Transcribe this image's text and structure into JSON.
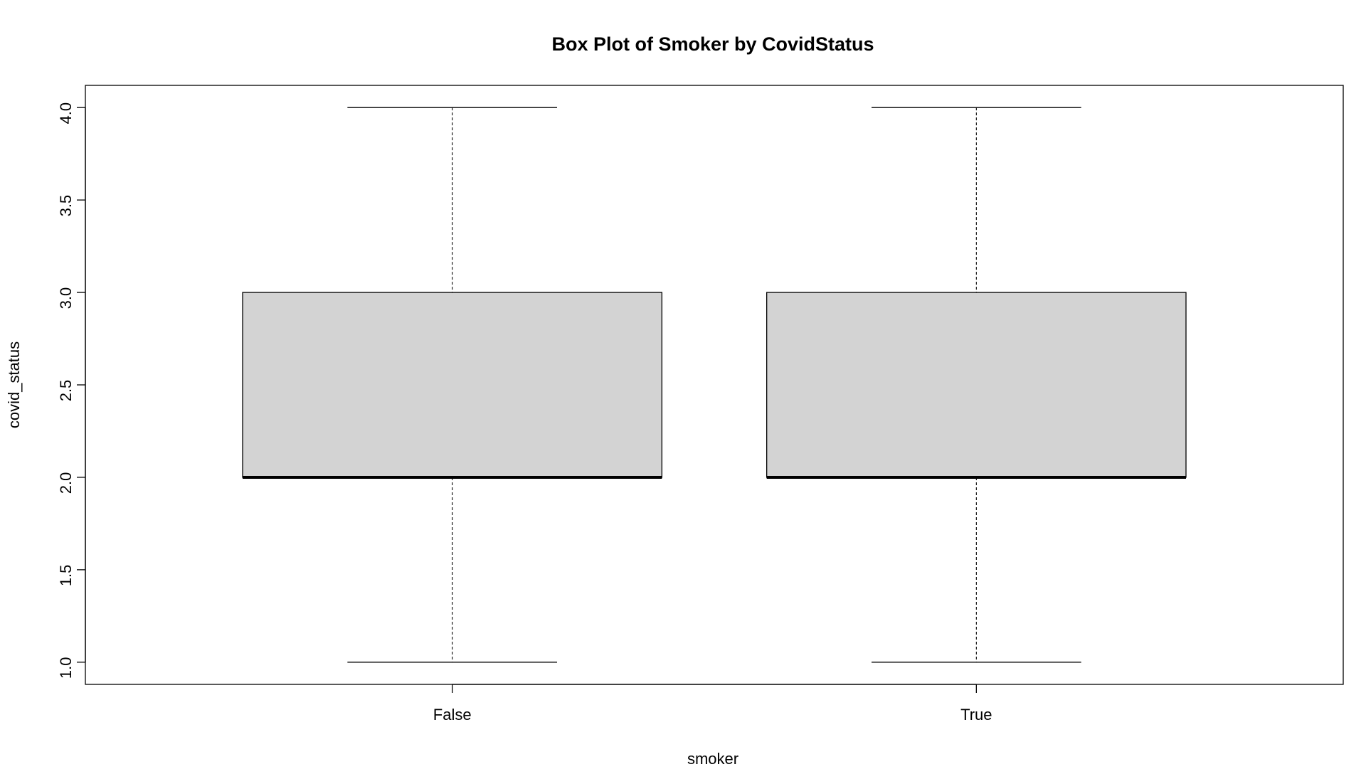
{
  "chart_data": {
    "type": "box",
    "title": "Box Plot of Smoker by CovidStatus",
    "xlabel": "smoker",
    "ylabel": "covid_status",
    "categories": [
      "False",
      "True"
    ],
    "boxes": [
      {
        "category": "False",
        "min": 1.0,
        "q1": 2.0,
        "median": 2.0,
        "q3": 3.0,
        "max": 4.0
      },
      {
        "category": "True",
        "min": 1.0,
        "q1": 2.0,
        "median": 2.0,
        "q3": 3.0,
        "max": 4.0
      }
    ],
    "yticks": [
      1.0,
      1.5,
      2.0,
      2.5,
      3.0,
      3.5,
      4.0
    ],
    "ytick_labels": [
      "1.0",
      "1.5",
      "2.0",
      "2.5",
      "3.0",
      "3.5",
      "4.0"
    ],
    "ylim": [
      0.88,
      4.12
    ],
    "box_fill": "#d3d3d3",
    "grid": false,
    "legend": "none"
  }
}
